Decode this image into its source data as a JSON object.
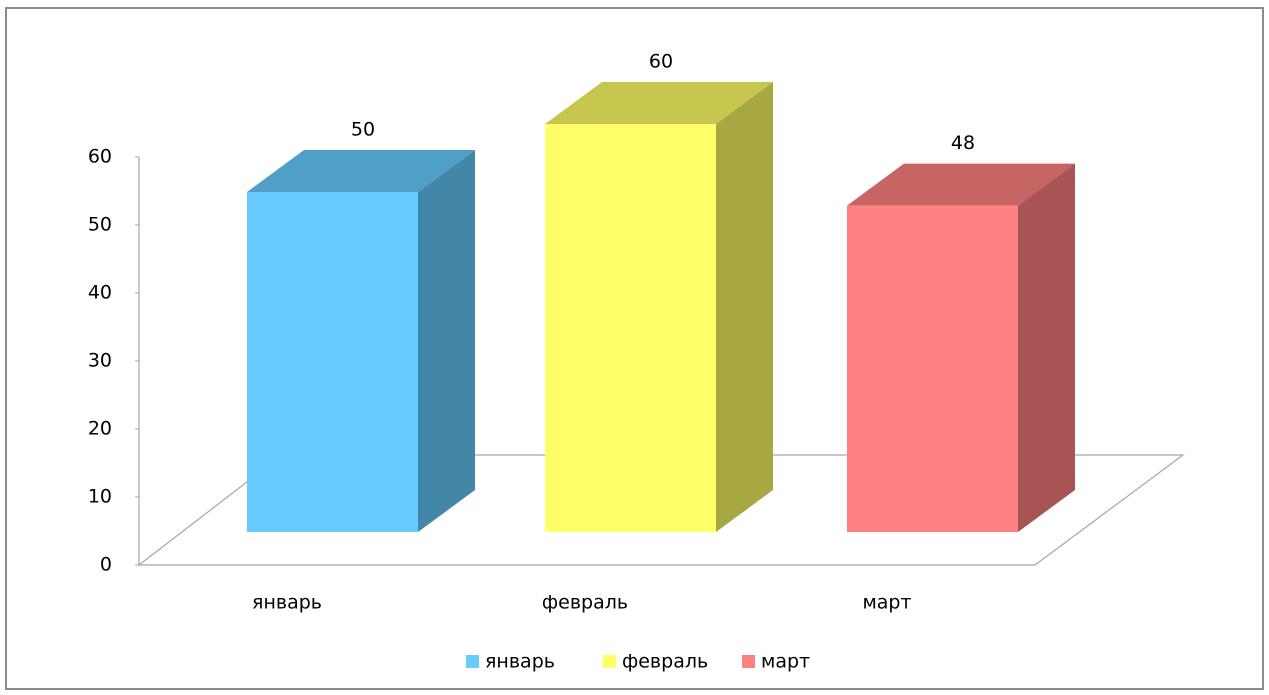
{
  "chart_data": {
    "type": "bar3d",
    "categories": [
      "январь",
      "февраль",
      "март"
    ],
    "values": [
      50,
      60,
      48
    ],
    "colors": [
      "#66ccff",
      "#ffff66",
      "#ff8080"
    ],
    "ylim": [
      0,
      60
    ],
    "yticks": [
      0,
      10,
      20,
      30,
      40,
      50,
      60
    ],
    "legend": "bottom"
  }
}
